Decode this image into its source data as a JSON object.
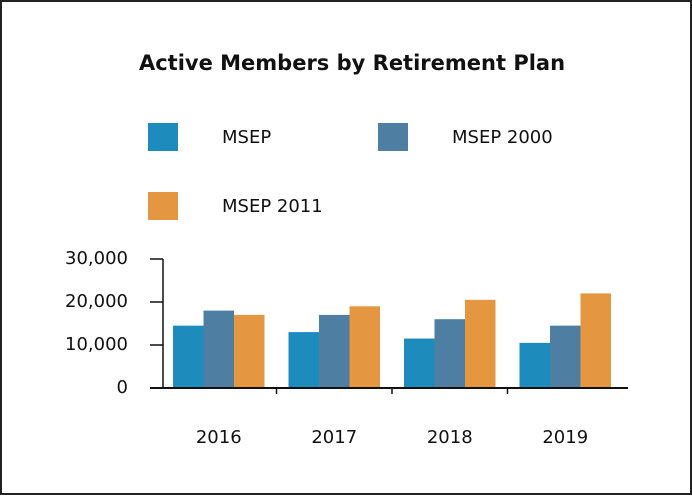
{
  "chart_data": {
    "type": "bar",
    "title": "Active Members by Retirement Plan",
    "categories": [
      "2016",
      "2017",
      "2018",
      "2019"
    ],
    "series": [
      {
        "name": "MSEP",
        "color": "#1e8bbd",
        "values": [
          14500,
          13000,
          11500,
          10500
        ]
      },
      {
        "name": "MSEP 2000",
        "color": "#4f7ea3",
        "values": [
          18000,
          17000,
          16000,
          14500
        ]
      },
      {
        "name": "MSEP 2011",
        "color": "#e59640",
        "values": [
          17000,
          19000,
          20500,
          22000
        ]
      }
    ],
    "ylim": [
      0,
      30000
    ],
    "yticks": [
      0,
      {
        "value": 10000,
        "label": "10,000"
      },
      {
        "value": 20000,
        "label": "20,000"
      },
      {
        "value": 30000,
        "label": "30,000"
      }
    ]
  }
}
